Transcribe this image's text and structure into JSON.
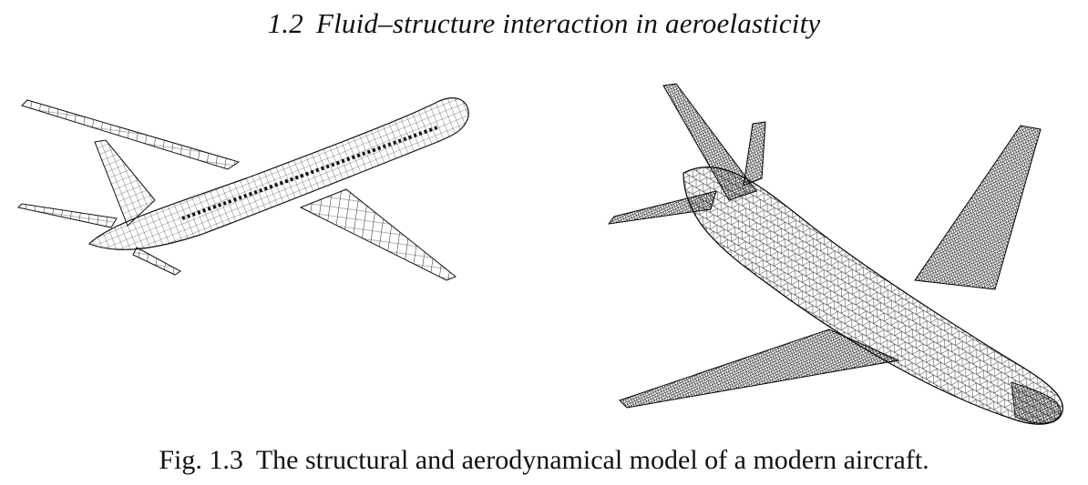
{
  "header": {
    "section_number": "1.2",
    "section_title": "Fluid–structure interaction in aeroelasticity"
  },
  "figure": {
    "label": "Fig. 1.3",
    "caption": "The structural and aerodynamical model of a modern aircraft."
  }
}
